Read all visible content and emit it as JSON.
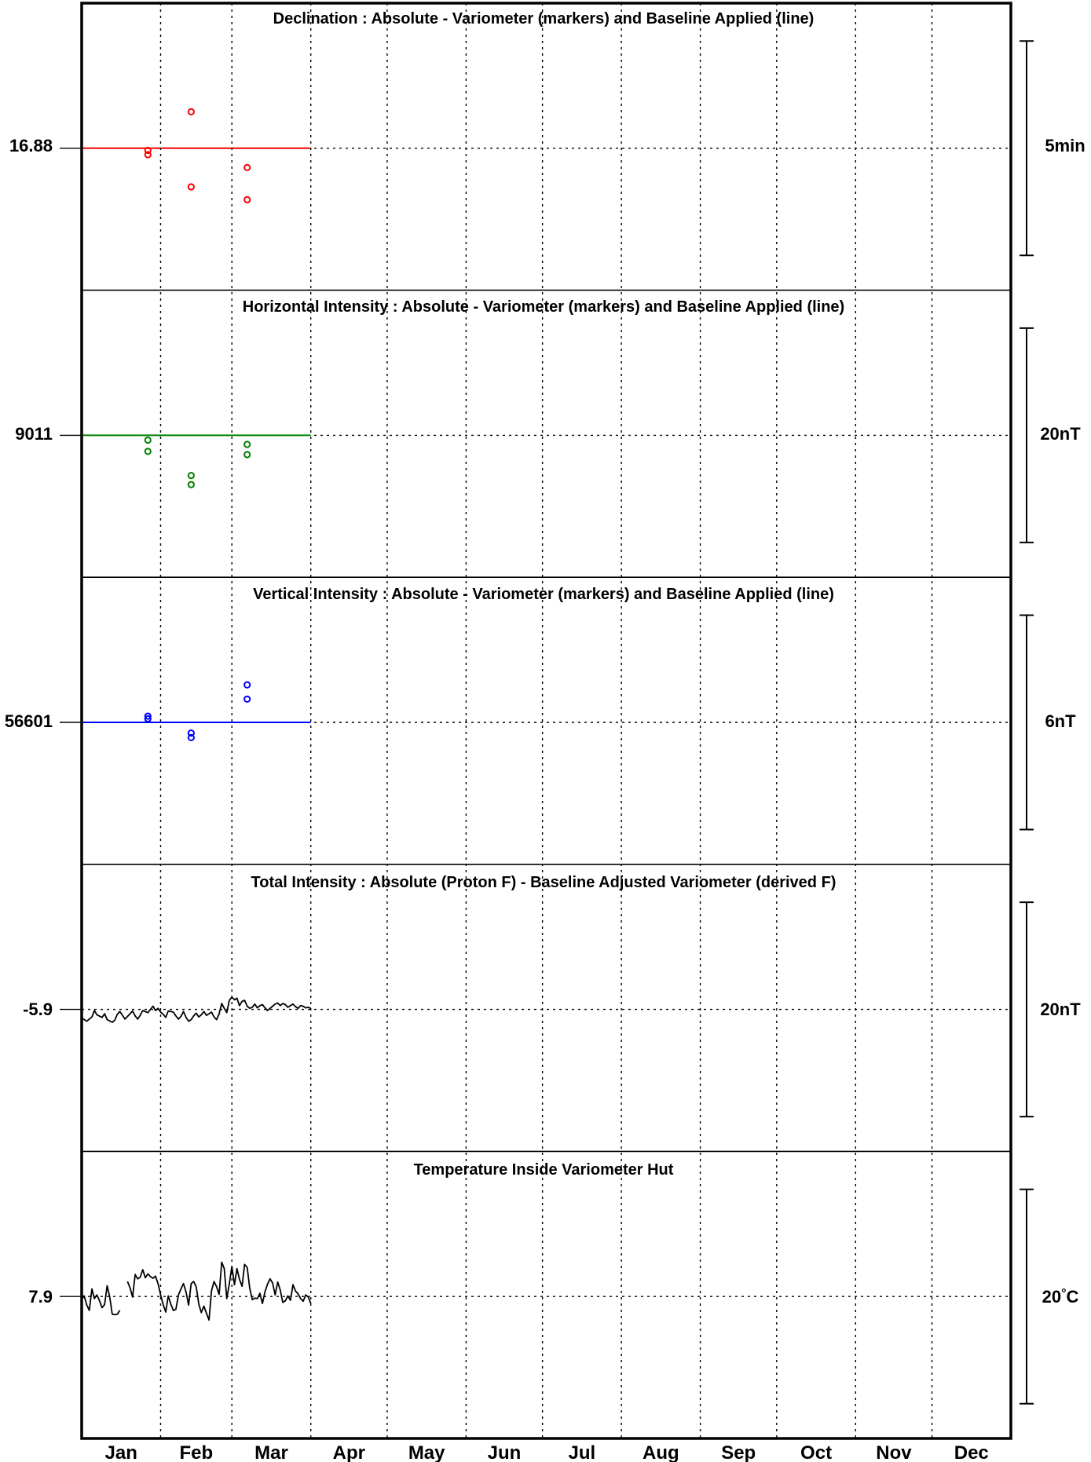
{
  "months": [
    "Jan",
    "Feb",
    "Mar",
    "Apr",
    "May",
    "Jun",
    "Jul",
    "Aug",
    "Sep",
    "Oct",
    "Nov",
    "Dec"
  ],
  "chart_data": [
    {
      "type": "scatter",
      "title": "Declination : Absolute - Variometer (markers) and Baseline Applied (line)",
      "center_label": "16.88",
      "scale_label": "5min",
      "color": "#ff0000",
      "x_unit": "day of year",
      "xlim": [
        1,
        366
      ],
      "y_unit": "minutes from baseline",
      "ylim": [
        -5,
        5
      ],
      "baseline_x": [
        1,
        91
      ],
      "baseline_y": 0,
      "points": [
        [
          27,
          -0.1
        ],
        [
          27,
          -0.3
        ],
        [
          44,
          1.7
        ],
        [
          44,
          -1.8
        ],
        [
          66,
          -0.9
        ],
        [
          66,
          -2.4
        ]
      ]
    },
    {
      "type": "scatter",
      "title": "Horizontal Intensity : Absolute - Variometer (markers) and Baseline Applied (line)",
      "center_label": "9011",
      "scale_label": "20nT",
      "color": "#008000",
      "x_unit": "day of year",
      "xlim": [
        1,
        366
      ],
      "y_unit": "nT from baseline",
      "ylim": [
        -20,
        20
      ],
      "baseline_x": [
        1,
        91
      ],
      "baseline_y": 0,
      "points": [
        [
          27,
          -0.9
        ],
        [
          27,
          -3.0
        ],
        [
          44,
          -7.5
        ],
        [
          44,
          -9.2
        ],
        [
          66,
          -1.7
        ],
        [
          66,
          -3.6
        ]
      ]
    },
    {
      "type": "scatter",
      "title": "Vertical Intensity : Absolute - Variometer (markers) and Baseline Applied (line)",
      "center_label": "56601",
      "scale_label": "6nT",
      "color": "#0000ff",
      "x_unit": "day of year",
      "xlim": [
        1,
        366
      ],
      "y_unit": "nT from baseline",
      "ylim": [
        -6,
        6
      ],
      "baseline_x": [
        1,
        91
      ],
      "baseline_y": 0,
      "points": [
        [
          27,
          0.35
        ],
        [
          27,
          0.2
        ],
        [
          44,
          -0.6
        ],
        [
          44,
          -0.85
        ],
        [
          66,
          2.1
        ],
        [
          66,
          1.3
        ]
      ]
    },
    {
      "type": "line",
      "title": "Total Intensity : Absolute (Proton F) - Baseline Adjusted Variometer (derived F)",
      "center_label": "-5.9",
      "scale_label": "20nT",
      "color": "#000000",
      "x_unit": "day of year",
      "xlim": [
        1,
        366
      ],
      "y_unit": "nT",
      "ylim": [
        -20,
        20
      ],
      "segments": [
        [
          [
            1,
            -1.6
          ],
          [
            3,
            -2.2
          ],
          [
            5,
            -1.4
          ],
          [
            6,
            -0.2
          ],
          [
            7,
            -1.0
          ],
          [
            9,
            -1.5
          ],
          [
            10,
            -0.8
          ],
          [
            11,
            -1.9
          ],
          [
            13,
            -2.4
          ],
          [
            14,
            -2.0
          ],
          [
            15,
            -0.9
          ],
          [
            16,
            -0.4
          ],
          [
            17,
            -1.1
          ],
          [
            18,
            -1.8
          ],
          [
            20,
            -0.8
          ],
          [
            21,
            -0.3
          ],
          [
            22,
            -1.2
          ],
          [
            23,
            -1.8
          ],
          [
            24,
            -1.1
          ],
          [
            25,
            -0.2
          ],
          [
            27,
            -0.6
          ],
          [
            29,
            0.6
          ],
          [
            30,
            -0.2
          ],
          [
            31,
            0.2
          ],
          [
            32,
            -0.5
          ],
          [
            33,
            -0.9
          ],
          [
            34,
            -1.5
          ],
          [
            35,
            -0.3
          ],
          [
            37,
            -0.5
          ],
          [
            38,
            -1.2
          ],
          [
            39,
            -1.8
          ],
          [
            40,
            -1.3
          ],
          [
            41,
            -0.4
          ],
          [
            42,
            -1.5
          ],
          [
            43,
            -2.2
          ],
          [
            44,
            -1.9
          ],
          [
            45,
            -1.2
          ],
          [
            46,
            -0.7
          ],
          [
            47,
            -1.4
          ],
          [
            48,
            -1.0
          ],
          [
            49,
            -0.4
          ],
          [
            50,
            -1.1
          ],
          [
            51,
            -0.8
          ],
          [
            52,
            -0.5
          ],
          [
            53,
            -1.4
          ],
          [
            54,
            -1.9
          ],
          [
            55,
            -0.8
          ],
          [
            56,
            1.1
          ],
          [
            57,
            0.2
          ],
          [
            58,
            -0.6
          ],
          [
            59,
            1.7
          ],
          [
            60,
            2.3
          ],
          [
            61,
            1.8
          ],
          [
            62,
            2.1
          ],
          [
            63,
            0.7
          ],
          [
            64,
            1.5
          ],
          [
            65,
            1.7
          ],
          [
            66,
            0.6
          ],
          [
            67,
            0.2
          ],
          [
            68,
            0.4
          ],
          [
            69,
            1.0
          ],
          [
            70,
            0.3
          ],
          [
            71,
            0.7
          ],
          [
            72,
            0.9
          ],
          [
            73,
            0.3
          ],
          [
            74,
            -0.2
          ],
          [
            75,
            0.2
          ],
          [
            76,
            0.6
          ],
          [
            77,
            1.0
          ],
          [
            78,
            1.2
          ],
          [
            79,
            0.7
          ],
          [
            80,
            1.1
          ],
          [
            81,
            0.9
          ],
          [
            82,
            0.4
          ],
          [
            83,
            0.7
          ],
          [
            84,
            1.0
          ],
          [
            85,
            0.5
          ],
          [
            86,
            0.2
          ],
          [
            87,
            0.7
          ],
          [
            88,
            0.6
          ],
          [
            89,
            0.3
          ],
          [
            90,
            0.4
          ],
          [
            91,
            0.2
          ]
        ]
      ]
    },
    {
      "type": "line",
      "title": "Temperature Inside Variometer Hut",
      "center_label": "7.9",
      "scale_label": "20°C",
      "scale_label_parts": [
        "20",
        "°",
        "C"
      ],
      "color": "#000000",
      "x_unit": "day of year",
      "xlim": [
        1,
        366
      ],
      "y_unit": "degrees C from 7.9",
      "ylim": [
        -20,
        20
      ],
      "segments": [
        [
          [
            1,
            -0.5
          ],
          [
            2,
            0.1
          ],
          [
            3,
            -1.6
          ],
          [
            4,
            -2.6
          ],
          [
            5,
            1.4
          ],
          [
            6,
            -0.4
          ],
          [
            7,
            0.3
          ],
          [
            8,
            -0.8
          ],
          [
            9,
            -2.1
          ],
          [
            10,
            -1.5
          ],
          [
            11,
            2.0
          ],
          [
            12,
            -0.1
          ],
          [
            13,
            -3.3
          ],
          [
            14,
            -3.4
          ],
          [
            15,
            -3.3
          ],
          [
            16,
            -2.6
          ]
        ],
        [
          [
            19,
            2.8
          ],
          [
            20,
            1.6
          ],
          [
            21,
            -0.1
          ],
          [
            22,
            4.1
          ],
          [
            23,
            3.3
          ],
          [
            24,
            3.6
          ],
          [
            25,
            5.0
          ],
          [
            26,
            3.5
          ],
          [
            27,
            4.2
          ],
          [
            28,
            3.7
          ],
          [
            29,
            3.4
          ],
          [
            30,
            3.8
          ],
          [
            31,
            2.4
          ],
          [
            32,
            0.3
          ],
          [
            33,
            -1.5
          ],
          [
            34,
            -2.9
          ],
          [
            35,
            0.1
          ],
          [
            36,
            -1.4
          ],
          [
            37,
            -2.6
          ],
          [
            38,
            -2.4
          ],
          [
            39,
            0.3
          ],
          [
            40,
            1.4
          ],
          [
            41,
            2.4
          ],
          [
            42,
            0.8
          ],
          [
            43,
            -1.6
          ],
          [
            44,
            2.4
          ],
          [
            45,
            2.8
          ],
          [
            46,
            1.8
          ],
          [
            47,
            -1.4
          ],
          [
            48,
            -3.0
          ],
          [
            49,
            -1.8
          ],
          [
            50,
            -3.1
          ],
          [
            51,
            -4.4
          ],
          [
            52,
            1.1
          ],
          [
            53,
            2.8
          ],
          [
            54,
            1.8
          ],
          [
            55,
            0.4
          ],
          [
            56,
            6.4
          ],
          [
            57,
            5.2
          ],
          [
            58,
            -0.4
          ],
          [
            59,
            2.4
          ],
          [
            60,
            5.6
          ],
          [
            61,
            2.2
          ],
          [
            62,
            5.2
          ],
          [
            63,
            3.2
          ],
          [
            64,
            1.9
          ],
          [
            65,
            6.0
          ],
          [
            66,
            5.4
          ],
          [
            67,
            1.6
          ],
          [
            68,
            -0.6
          ],
          [
            69,
            -0.3
          ],
          [
            70,
            -0.4
          ],
          [
            71,
            0.6
          ],
          [
            72,
            -1.3
          ],
          [
            73,
            0.9
          ],
          [
            74,
            2.3
          ],
          [
            75,
            3.3
          ],
          [
            76,
            2.5
          ],
          [
            77,
            0.3
          ],
          [
            78,
            2.7
          ],
          [
            79,
            1.2
          ],
          [
            80,
            -1.1
          ],
          [
            81,
            -0.8
          ],
          [
            82,
            0.1
          ],
          [
            83,
            -0.7
          ],
          [
            84,
            2.2
          ],
          [
            85,
            1.0
          ],
          [
            86,
            0.5
          ],
          [
            87,
            -0.4
          ],
          [
            88,
            -0.9
          ],
          [
            89,
            0.3
          ],
          [
            90,
            -0.1
          ],
          [
            91,
            -1.3
          ]
        ]
      ]
    }
  ]
}
